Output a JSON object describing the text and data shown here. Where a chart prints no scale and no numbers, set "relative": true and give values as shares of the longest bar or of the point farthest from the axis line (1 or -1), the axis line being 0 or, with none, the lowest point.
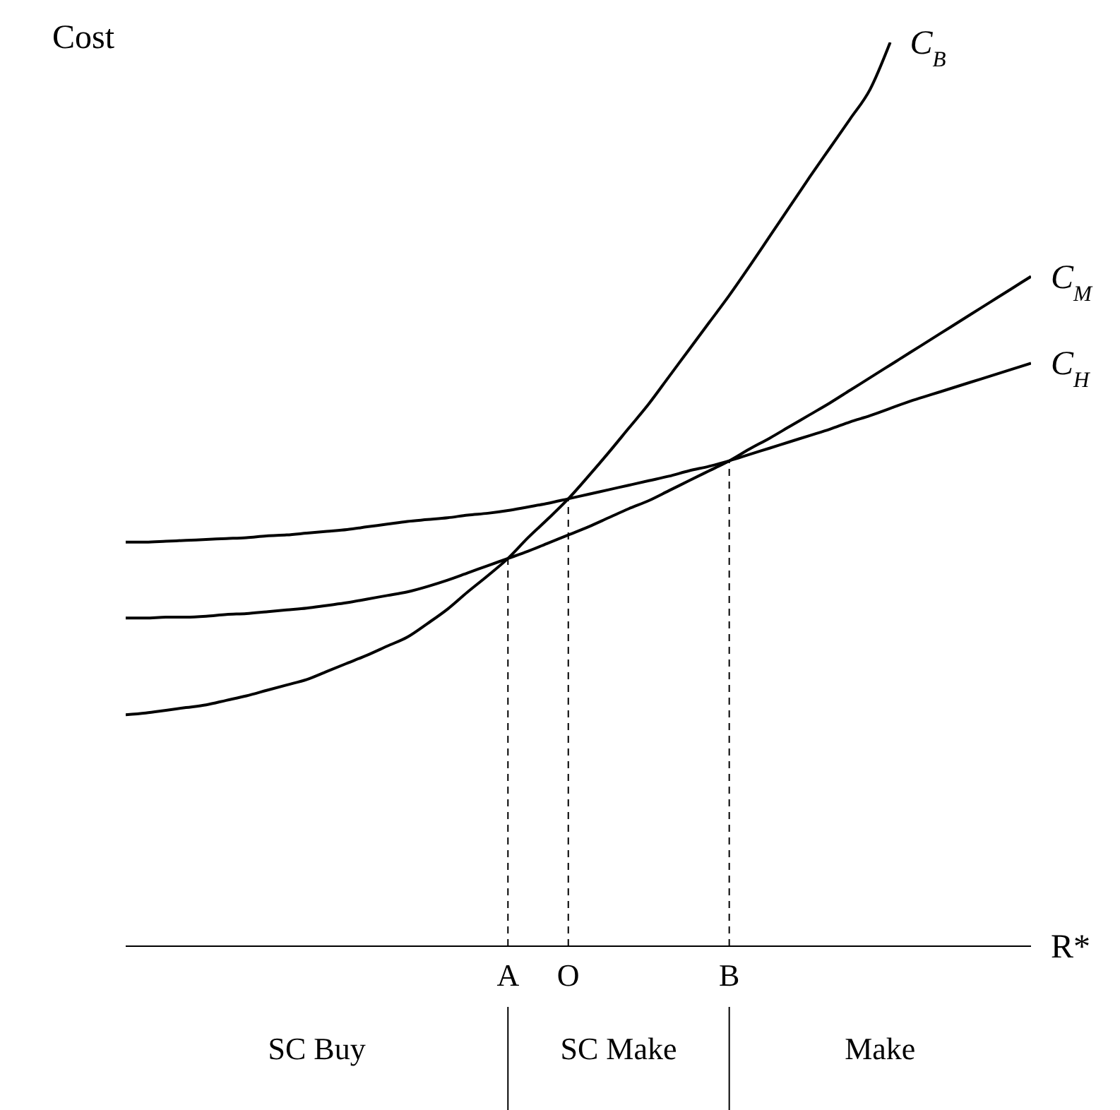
{
  "chart_data": {
    "type": "line",
    "relative": true,
    "xlabel": "R*",
    "ylabel": "Cost",
    "categories": [
      null,
      null,
      null,
      null,
      null,
      null,
      null,
      null,
      null,
      null,
      null,
      null,
      null,
      null,
      null,
      null,
      null,
      null,
      null,
      "A",
      null,
      null,
      "O",
      null,
      null,
      null,
      null,
      null,
      null,
      null,
      "B",
      null,
      null,
      null,
      null,
      null,
      null,
      null,
      null,
      null,
      null,
      null,
      null,
      null,
      null,
      null
    ],
    "series": [
      {
        "name": "C$_{B}$",
        "color": "#000000",
        "values": [
          0.256,
          0.258,
          0.261,
          0.264,
          0.267,
          0.272,
          0.277,
          0.283,
          0.289,
          0.295,
          0.304,
          0.313,
          0.322,
          0.332,
          0.342,
          0.357,
          0.373,
          0.392,
          0.41,
          0.429,
          0.452,
          0.473,
          0.495,
          0.52,
          0.546,
          0.573,
          0.6,
          0.63,
          0.66,
          0.69,
          0.72,
          0.752,
          0.785,
          0.818,
          0.851,
          0.883,
          0.915,
          0.948,
          1,
          null,
          null,
          null,
          null,
          null,
          null,
          null
        ]
      },
      {
        "name": "C$_{M}$",
        "color": "#000000",
        "values": [
          0.363,
          0.363,
          0.364,
          0.364,
          0.365,
          0.367,
          0.368,
          0.37,
          0.372,
          0.374,
          0.377,
          0.38,
          0.384,
          0.388,
          0.392,
          0.398,
          0.405,
          0.413,
          0.421,
          0.429,
          0.437,
          0.446,
          0.455,
          0.464,
          0.474,
          0.484,
          0.493,
          0.504,
          0.515,
          0.526,
          0.537,
          0.55,
          0.562,
          0.575,
          0.588,
          0.601,
          0.615,
          0.629,
          0.643,
          0.657,
          0.671,
          0.685,
          0.699,
          0.713,
          0.727,
          0.741
        ]
      },
      {
        "name": "C$_{H}$",
        "color": "#000000",
        "values": [
          0.447,
          0.447,
          0.448,
          0.449,
          0.45,
          0.451,
          0.452,
          0.454,
          0.455,
          0.457,
          0.459,
          0.461,
          0.464,
          0.467,
          0.47,
          0.472,
          0.474,
          0.477,
          0.479,
          0.482,
          0.486,
          0.49,
          0.495,
          0.5,
          0.505,
          0.51,
          0.515,
          0.52,
          0.526,
          0.531,
          0.537,
          0.544,
          0.551,
          0.558,
          0.565,
          0.572,
          0.58,
          0.587,
          0.595,
          0.603,
          0.61,
          0.617,
          0.624,
          0.631,
          0.638,
          0.645
        ]
      }
    ],
    "ref_lines": [
      {
        "axis": "x",
        "value": "A",
        "line_style": "dashed"
      },
      {
        "axis": "x",
        "value": "O",
        "line_style": "dashed"
      },
      {
        "axis": "x",
        "value": "B",
        "line_style": "dashed"
      }
    ],
    "annotations": [
      "SC Buy",
      "SC Make",
      "Make"
    ],
    "grid": false,
    "marker": "none",
    "line_style": "solid"
  }
}
